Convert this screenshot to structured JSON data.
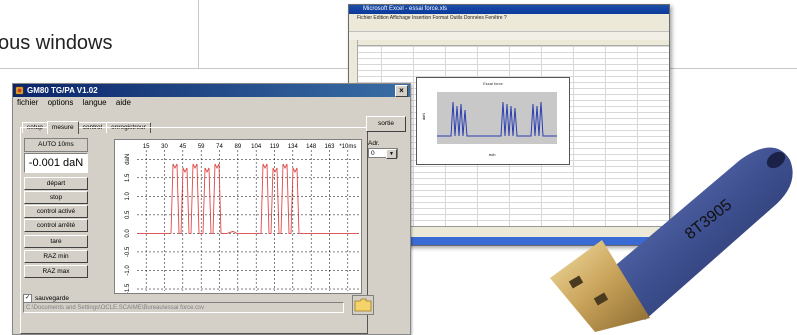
{
  "page": {
    "heading": "ous windows"
  },
  "excel": {
    "title": "Microsoft Excel - essai force.xls",
    "menu": "Fichier  Edition  Affichage  Insertion  Format  Outils  Données  Fenêtre  ?",
    "chart_title": "Essai force",
    "chart_ylabel": "daN",
    "chart_xlabel": "ech",
    "chart_yticks": [
      "1.2",
      "1",
      "0.8",
      "0.6",
      "0.4",
      "0.2",
      "0",
      "-0.2"
    ],
    "colors": {
      "titlebar": "#1d4ea8",
      "plot_bg": "#c8c8c8",
      "series": "#2a3fb0"
    }
  },
  "app": {
    "title": "GM80 TG/PA V1.02",
    "icon": "app-logo-icon",
    "close_label": "×",
    "menu": [
      "fichier",
      "options",
      "langue",
      "aide"
    ],
    "tabs": [
      "setup",
      "mesure",
      "control",
      "enregistreur"
    ],
    "active_tab": "mesure",
    "mode_label": "AUTO 10ms",
    "readout": "-0.001 daN",
    "buttons": [
      "départ",
      "stop",
      "control activé",
      "control arrêté",
      "tare",
      "RAZ min",
      "RAZ max"
    ],
    "sortie_label": "sortie",
    "adr_label": "Adr.",
    "adr_value": "0",
    "checkbox_label": "sauvegarde",
    "checkbox_checked": true,
    "path": "C:\\Documents and Settings\\OCLE.SCAIME\\Bureau\\essai force.csv",
    "folder_icon": "folder-icon",
    "colors": {
      "titlebar_start": "#0a246a",
      "titlebar_end": "#3a6ea5",
      "face": "#d4d0c8",
      "trace": "#e04848",
      "grid": "#000000"
    }
  },
  "plot": {
    "x_ticks": [
      "15",
      "30",
      "45",
      "59",
      "74",
      "89",
      "104",
      "119",
      "134",
      "148",
      "163",
      "*10ms"
    ],
    "y_ticks": [
      "-1.5",
      "-1.0",
      "-0.5",
      "0.0",
      "0.5",
      "1.0",
      "1.5",
      "daN"
    ]
  },
  "usb": {
    "label": "8T3905",
    "icon": "usb-key-icon",
    "colors": {
      "body": "#3d4f8f",
      "plug": "#c9a35a"
    }
  }
}
